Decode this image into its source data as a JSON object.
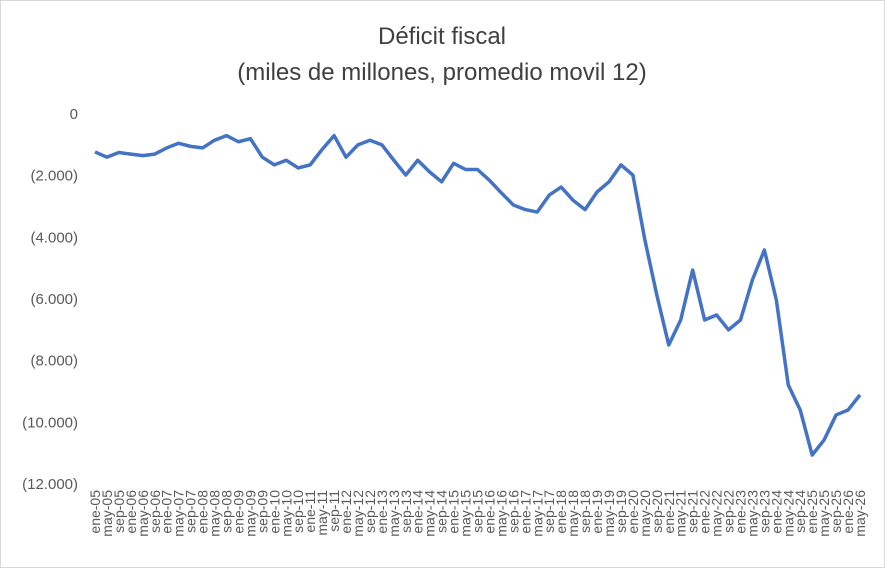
{
  "chart_data": {
    "type": "line",
    "title": "Déficit fiscal",
    "subtitle": "(miles de millones, promedio movil 12)",
    "categories": [
      "ene-05",
      "may-05",
      "sep-05",
      "ene-06",
      "may-06",
      "sep-06",
      "ene-07",
      "may-07",
      "sep-07",
      "ene-08",
      "may-08",
      "sep-08",
      "ene-09",
      "may-09",
      "sep-09",
      "ene-10",
      "may-10",
      "sep-10",
      "ene-11",
      "may-11",
      "sep-11",
      "ene-12",
      "may-12",
      "sep-12",
      "ene-13",
      "may-13",
      "sep-13",
      "ene-14",
      "may-14",
      "sep-14",
      "ene-15",
      "may-15",
      "sep-15",
      "ene-16",
      "may-16",
      "sep-16",
      "ene-17",
      "may-17",
      "sep-17",
      "ene-18",
      "may-18",
      "sep-18",
      "ene-19",
      "may-19",
      "sep-19",
      "ene-20",
      "may-20",
      "sep-20",
      "ene-21",
      "may-21",
      "sep-21",
      "ene-22",
      "may-22",
      "sep-22",
      "ene-23",
      "may-23",
      "sep-23",
      "ene-24",
      "may-24",
      "sep-24",
      "ene-25",
      "may-25",
      "sep-25",
      "ene-26",
      "may-26"
    ],
    "series": [
      {
        "color": "#4472c4",
        "values": [
          -1230,
          -1400,
          -1250,
          -1300,
          -1350,
          -1300,
          -1100,
          -950,
          -1050,
          -1100,
          -850,
          -700,
          -900,
          -800,
          -1400,
          -1650,
          -1500,
          -1750,
          -1650,
          -1150,
          -700,
          -1400,
          -1000,
          -850,
          -1000,
          -1500,
          -1980,
          -1500,
          -1880,
          -2200,
          -1600,
          -1800,
          -1800,
          -2150,
          -2560,
          -2950,
          -3100,
          -3180,
          -2630,
          -2370,
          -2800,
          -3100,
          -2530,
          -2200,
          -1650,
          -1980,
          -4080,
          -5870,
          -7490,
          -6680,
          -5060,
          -6680,
          -6520,
          -7000,
          -6680,
          -5380,
          -4410,
          -6030,
          -8790,
          -9600,
          -11060,
          -10570,
          -9760,
          -9600,
          -9110
        ]
      }
    ],
    "ylim": [
      -12000,
      0
    ],
    "yticks": [
      {
        "value": -12000,
        "label": "(12.000)"
      },
      {
        "value": -10000,
        "label": "(10.000)"
      },
      {
        "value": -8000,
        "label": "(8.000)"
      },
      {
        "value": -6000,
        "label": "(6.000)"
      },
      {
        "value": -4000,
        "label": "(4.000)"
      },
      {
        "value": -2000,
        "label": "(2.000)"
      },
      0
    ]
  }
}
